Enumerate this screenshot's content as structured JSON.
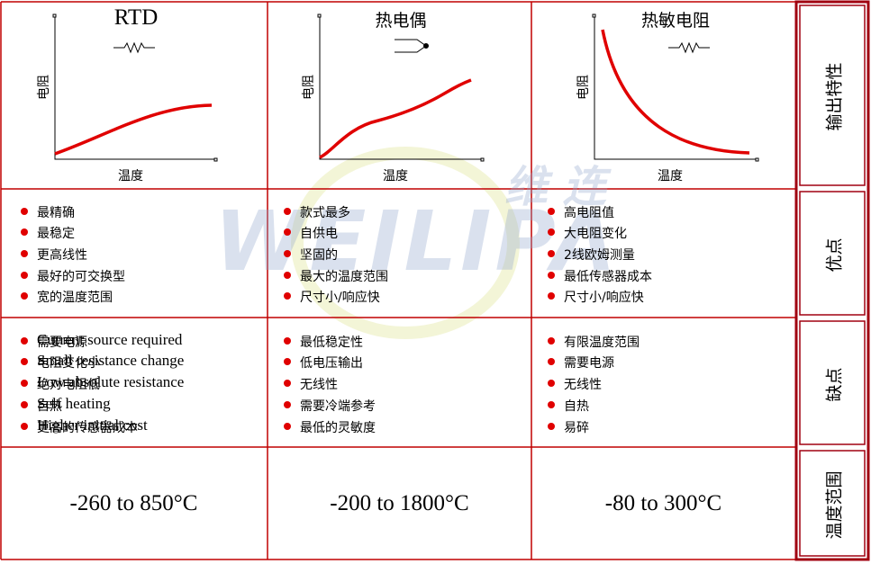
{
  "columns": [
    {
      "title": "RTD",
      "y_label": "电阻",
      "x_label": "温度"
    },
    {
      "title": "热电偶",
      "y_label": "电阻",
      "x_label": "温度"
    },
    {
      "title": "热敏电阻",
      "y_label": "电阻",
      "x_label": "温度"
    }
  ],
  "row_labels": [
    "输出特性",
    "优点",
    "缺点",
    "温度范围"
  ],
  "pros": [
    [
      "最精确",
      "最稳定",
      "更高线性",
      "最好的可交换型",
      "宽的温度范围"
    ],
    [
      "款式最多",
      "自供电",
      "坚固的",
      "最大的温度范围",
      "尺寸小/响应快"
    ],
    [
      "高电阻值",
      "大电阻变化",
      "2线欧姆测量",
      "最低传感器成本",
      "尺寸小/响应快"
    ]
  ],
  "cons": [
    [
      "需要电源",
      "电阻变化小",
      "绝对电阻低",
      "自热",
      "更高的传感器成本"
    ],
    [
      "最低稳定性",
      "低电压输出",
      "无线性",
      "需要冷端参考",
      "最低的灵敏度"
    ],
    [
      "有限温度范围",
      "需要电源",
      "无线性",
      "自热",
      "易碎"
    ]
  ],
  "rtd_cons_en": [
    "Current source required",
    "Small resistance change",
    "Low absolute resistance",
    "Self heating",
    "Higher initial cost"
  ],
  "ranges": [
    "-260 to 850°C",
    "-200 to 1800°C",
    "-80 to 300°C"
  ],
  "watermark": {
    "cn": "维 连",
    "en": "WEILIPA"
  }
}
